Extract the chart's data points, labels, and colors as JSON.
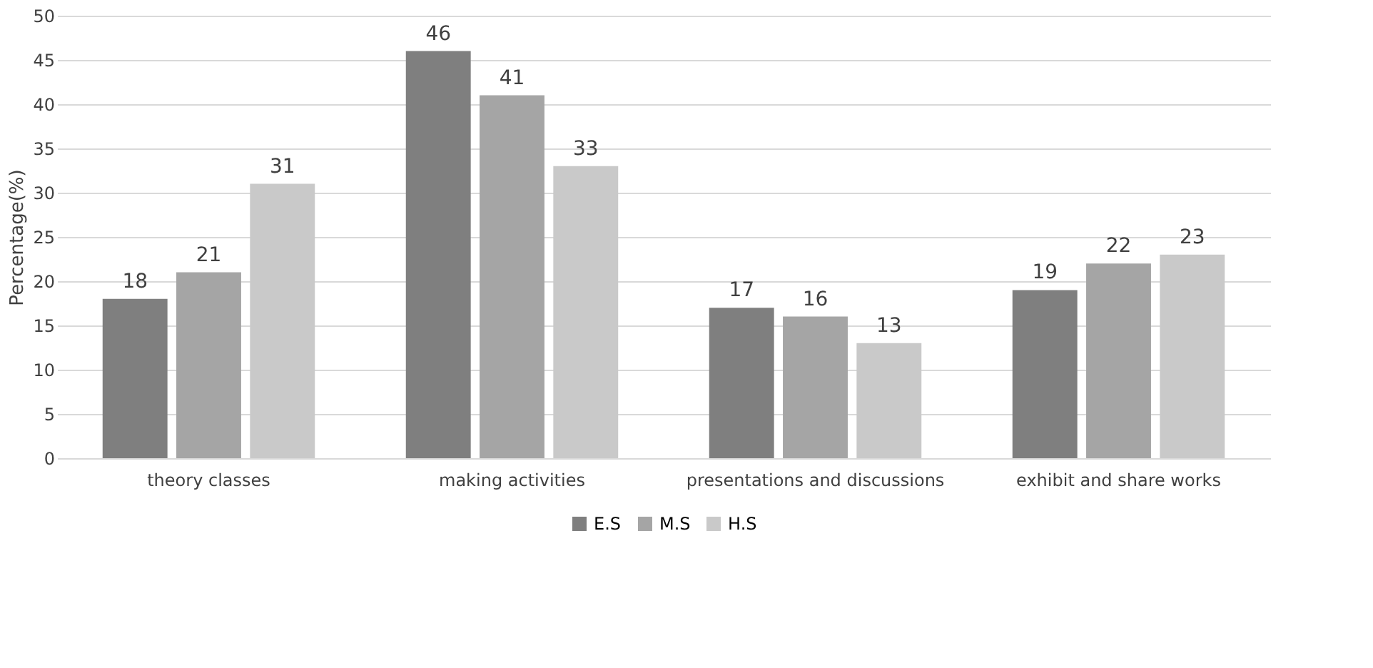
{
  "chart_data": {
    "type": "bar",
    "ylabel": "Percentage(%)",
    "categories": [
      "theory classes",
      "making activities",
      "presentations and discussions",
      "exhibit and share works"
    ],
    "series": [
      {
        "name": "E.S",
        "color": "#7f7f7f",
        "values": [
          18,
          46,
          17,
          19
        ]
      },
      {
        "name": "M.S",
        "color": "#a5a5a5",
        "values": [
          21,
          41,
          16,
          22
        ]
      },
      {
        "name": "H.S",
        "color": "#c9c9c9",
        "values": [
          31,
          33,
          13,
          23
        ]
      }
    ],
    "ylim": [
      0,
      50
    ],
    "yticks": [
      0,
      5,
      10,
      15,
      20,
      25,
      30,
      35,
      40,
      45,
      50
    ],
    "grid": "y",
    "legend": "bottom",
    "data_labels": true
  }
}
